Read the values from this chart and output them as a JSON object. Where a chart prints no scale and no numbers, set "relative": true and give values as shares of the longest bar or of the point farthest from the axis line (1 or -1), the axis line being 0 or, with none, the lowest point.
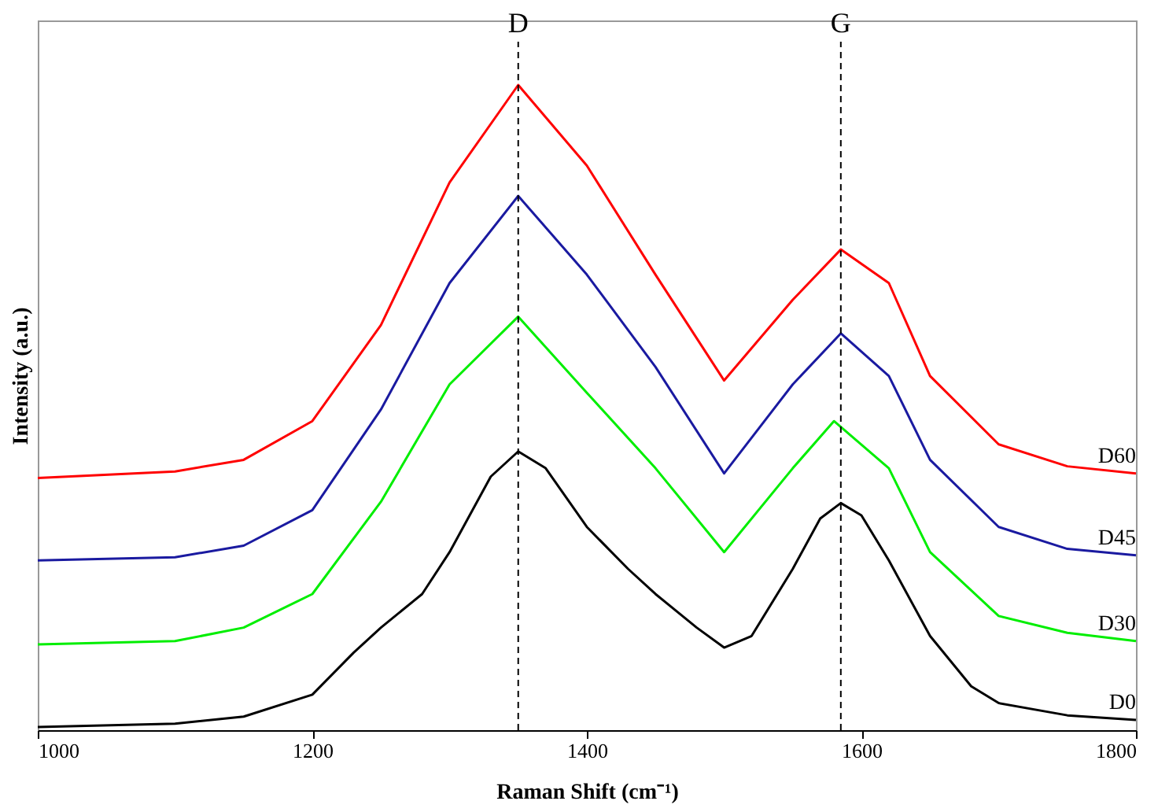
{
  "chart_data": {
    "type": "line",
    "relative": true,
    "xlabel": "Raman Shift (cm⁻¹)",
    "ylabel": "Intensity (a.u.)",
    "xlim": [
      1000,
      1800
    ],
    "xticks": [
      1000,
      1200,
      1400,
      1600,
      1800
    ],
    "grid": false,
    "legend": false,
    "marker": "none",
    "line_style": "solid",
    "series": [
      {
        "name": "D0",
        "color": "#000000",
        "x": [
          1000,
          1100,
          1150,
          1200,
          1230,
          1250,
          1280,
          1300,
          1330,
          1350,
          1370,
          1400,
          1430,
          1450,
          1480,
          1500,
          1520,
          1550,
          1570,
          1585,
          1600,
          1620,
          1650,
          1680,
          1700,
          1750,
          1800
        ],
        "values": [
          0.005,
          0.01,
          0.021,
          0.055,
          0.12,
          0.159,
          0.211,
          0.276,
          0.393,
          0.432,
          0.406,
          0.315,
          0.25,
          0.211,
          0.159,
          0.128,
          0.146,
          0.25,
          0.328,
          0.352,
          0.333,
          0.263,
          0.146,
          0.068,
          0.042,
          0.023,
          0.016
        ]
      },
      {
        "name": "D30",
        "color": "#00ee00",
        "x": [
          1000,
          1100,
          1150,
          1200,
          1250,
          1300,
          1350,
          1400,
          1450,
          1500,
          1550,
          1580,
          1620,
          1650,
          1700,
          1750,
          1800
        ],
        "values": [
          0.133,
          0.138,
          0.159,
          0.211,
          0.354,
          0.536,
          0.641,
          0.523,
          0.406,
          0.276,
          0.406,
          0.479,
          0.406,
          0.276,
          0.177,
          0.151,
          0.138
        ]
      },
      {
        "name": "D45",
        "color": "#1a1aa0",
        "x": [
          1000,
          1100,
          1150,
          1200,
          1250,
          1300,
          1350,
          1400,
          1450,
          1500,
          1550,
          1585,
          1620,
          1650,
          1700,
          1750,
          1800
        ],
        "values": [
          0.263,
          0.268,
          0.286,
          0.341,
          0.497,
          0.693,
          0.828,
          0.706,
          0.563,
          0.398,
          0.536,
          0.615,
          0.549,
          0.419,
          0.315,
          0.281,
          0.271
        ]
      },
      {
        "name": "D60",
        "color": "#ff0000",
        "x": [
          1000,
          1100,
          1150,
          1200,
          1250,
          1300,
          1350,
          1400,
          1450,
          1500,
          1550,
          1585,
          1620,
          1650,
          1700,
          1750,
          1800
        ],
        "values": [
          0.391,
          0.401,
          0.419,
          0.479,
          0.628,
          0.849,
          1,
          0.875,
          0.706,
          0.542,
          0.667,
          0.745,
          0.693,
          0.549,
          0.443,
          0.409,
          0.398
        ]
      }
    ],
    "ref_lines": [
      {
        "axis": "x",
        "value": 1350,
        "label": "D",
        "color": "#000000",
        "line_style": "dashed"
      },
      {
        "axis": "x",
        "value": 1585,
        "label": "G",
        "color": "#000000",
        "line_style": "dashed"
      }
    ]
  }
}
